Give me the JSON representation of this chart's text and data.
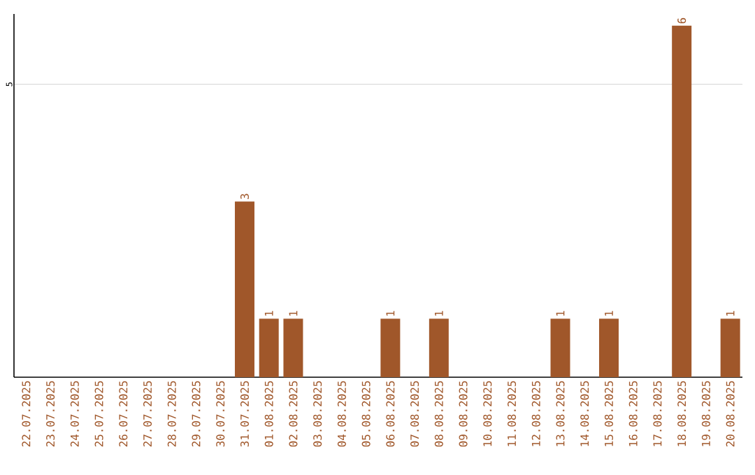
{
  "chart_data": {
    "type": "bar",
    "categories": [
      "22.07.2025",
      "23.07.2025",
      "24.07.2025",
      "25.07.2025",
      "26.07.2025",
      "27.07.2025",
      "28.07.2025",
      "29.07.2025",
      "30.07.2025",
      "31.07.2025",
      "01.08.2025",
      "02.08.2025",
      "03.08.2025",
      "04.08.2025",
      "05.08.2025",
      "06.08.2025",
      "07.08.2025",
      "08.08.2025",
      "09.08.2025",
      "10.08.2025",
      "11.08.2025",
      "12.08.2025",
      "13.08.2025",
      "14.08.2025",
      "15.08.2025",
      "16.08.2025",
      "17.08.2025",
      "18.08.2025",
      "19.08.2025",
      "20.08.2025"
    ],
    "values": [
      0,
      0,
      0,
      0,
      0,
      0,
      0,
      0,
      0,
      3,
      1,
      1,
      0,
      0,
      0,
      1,
      0,
      1,
      0,
      0,
      0,
      0,
      1,
      0,
      1,
      0,
      0,
      6,
      0,
      1
    ],
    "value_labels": [
      null,
      null,
      null,
      null,
      null,
      null,
      null,
      null,
      null,
      "3",
      "1",
      "1",
      null,
      null,
      null,
      "1",
      null,
      "1",
      null,
      null,
      null,
      null,
      "1",
      null,
      "1",
      null,
      null,
      "6",
      null,
      "1"
    ],
    "color": "#a0572a",
    "ylim": [
      0,
      6.2
    ],
    "yticks": [
      5
    ],
    "grid": "y"
  }
}
